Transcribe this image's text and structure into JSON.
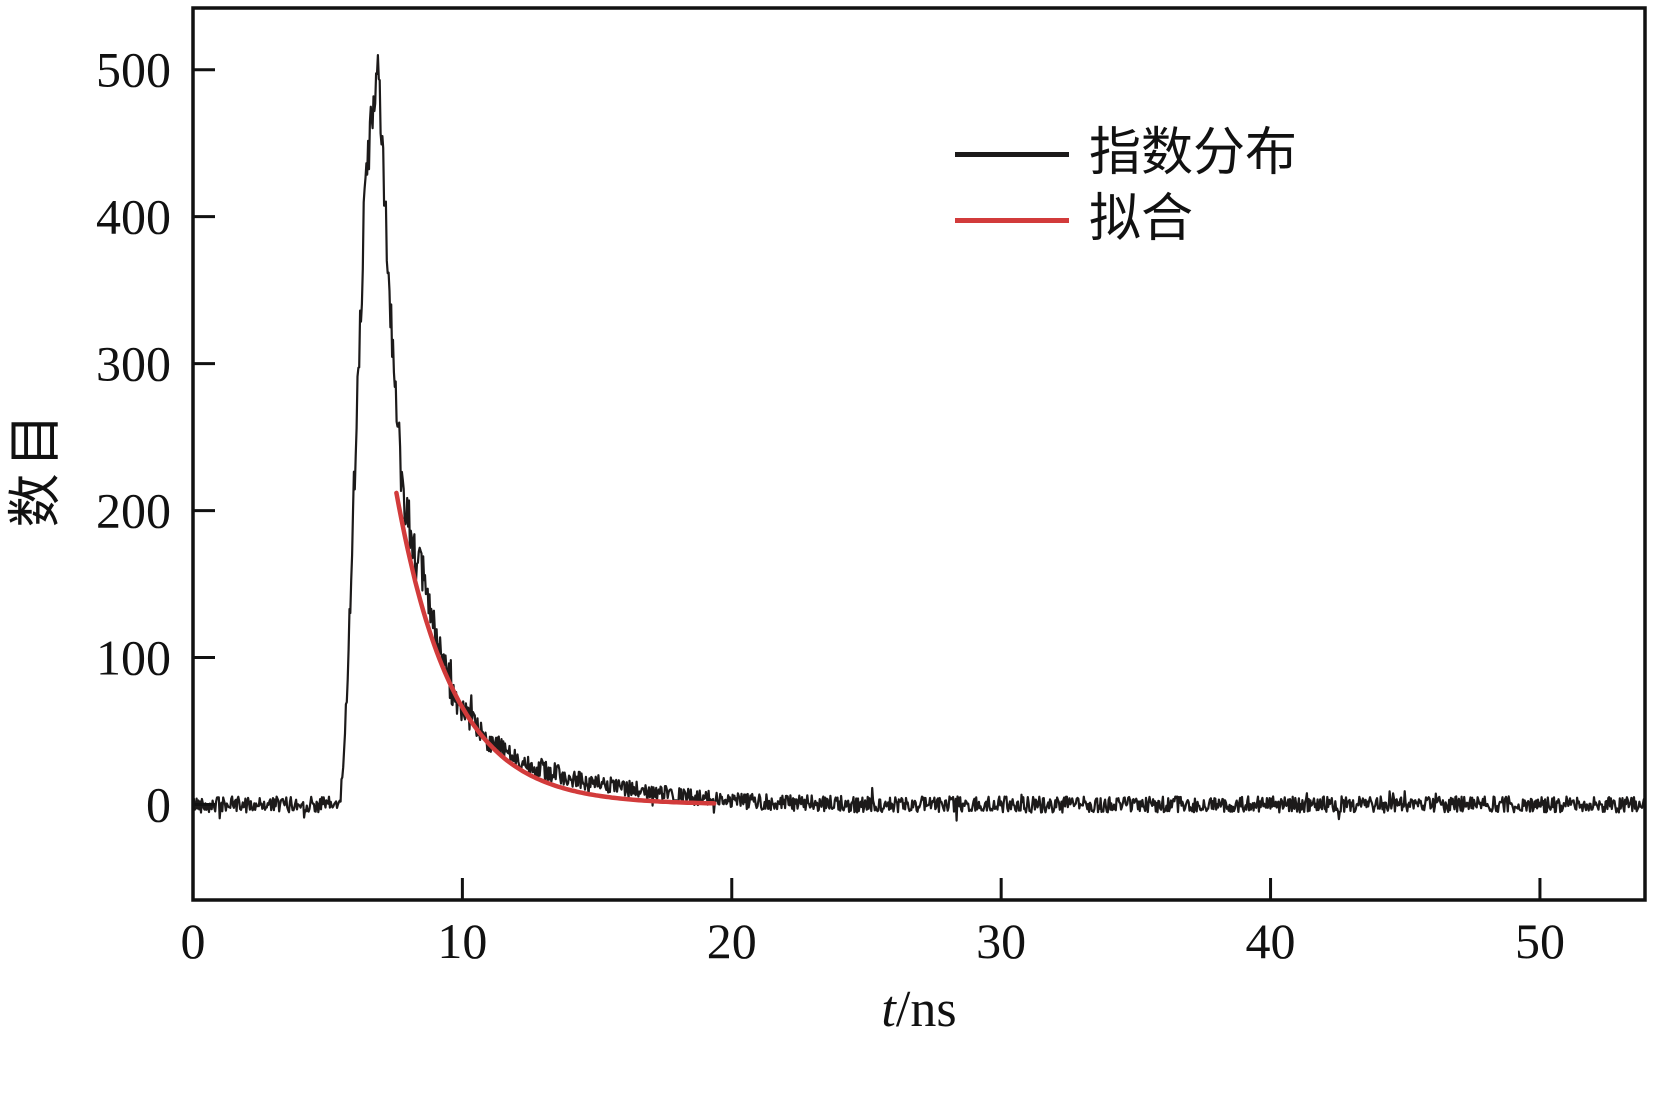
{
  "figure": {
    "background": "#ffffff",
    "frame_color": "#111111"
  },
  "chart_data": {
    "type": "line",
    "title": "",
    "xlabel": "t/ns",
    "xlabel_var": "t",
    "xlabel_unit": "/ns",
    "ylabel": "数目",
    "xlim": [
      0,
      53.9
    ],
    "ylim": [
      -65,
      542
    ],
    "xticks": [
      0,
      10,
      20,
      30,
      40,
      50
    ],
    "yticks": [
      0,
      100,
      200,
      300,
      400,
      500
    ],
    "grid": false,
    "legend_position": "upper-right-inside",
    "legend": [
      {
        "label": "指数分布",
        "color": "#1c1a1a"
      },
      {
        "label": "拟合",
        "color": "#d23b3b"
      }
    ],
    "series": [
      {
        "name": "指数分布",
        "type": "noisy-line",
        "color": "#1c1a1a",
        "stroke_width": 2.2,
        "anchors": [
          [
            0,
            0
          ],
          [
            5.45,
            0
          ],
          [
            5.6,
            30
          ],
          [
            5.8,
            120
          ],
          [
            6.1,
            280
          ],
          [
            6.4,
            420
          ],
          [
            6.7,
            480
          ],
          [
            6.85,
            497
          ],
          [
            7.0,
            455
          ],
          [
            7.15,
            400
          ],
          [
            7.35,
            330
          ],
          [
            7.55,
            265
          ],
          [
            7.75,
            225
          ],
          [
            8.0,
            195
          ],
          [
            8.3,
            165
          ],
          [
            8.6,
            152
          ],
          [
            8.8,
            135
          ],
          [
            9.0,
            112
          ],
          [
            9.3,
            95
          ],
          [
            9.6,
            78
          ],
          [
            10.0,
            63
          ],
          [
            10.5,
            52
          ],
          [
            11.0,
            44
          ],
          [
            11.5,
            37
          ],
          [
            12.0,
            31
          ],
          [
            12.5,
            27
          ],
          [
            13.0,
            24
          ],
          [
            13.5,
            21
          ],
          [
            14.0,
            18
          ],
          [
            15.0,
            14
          ],
          [
            16.0,
            11
          ],
          [
            17.0,
            8
          ],
          [
            18.0,
            6
          ],
          [
            19.0,
            4
          ],
          [
            20.0,
            3
          ],
          [
            22.0,
            1
          ],
          [
            25.0,
            0
          ],
          [
            30.0,
            0
          ],
          [
            40.0,
            0
          ],
          [
            53.9,
            0
          ]
        ],
        "noise": {
          "seed": 42,
          "base": 5.5,
          "scale": 0.06,
          "cap": 20,
          "spike_prob": 0.03,
          "spike_mult": 2.2,
          "dt": 0.033
        }
      },
      {
        "name": "拟合",
        "type": "exp-fit",
        "color": "#d23b3b",
        "stroke_width": 4.5,
        "fit": {
          "t_start": 7.55,
          "t_end": 19.4,
          "amplitude": 212,
          "tau": 2.1,
          "offset": 0
        }
      }
    ]
  }
}
